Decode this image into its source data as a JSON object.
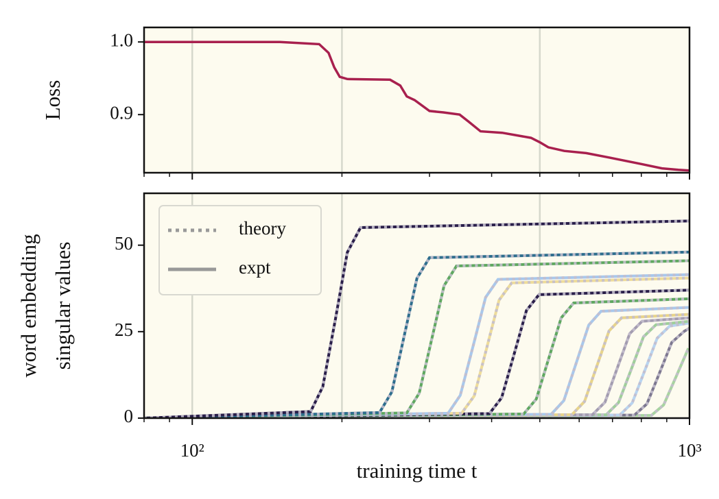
{
  "chart_data": [
    {
      "type": "line",
      "ylabel": "Loss",
      "xscale": "log",
      "xlim": [
        80,
        1000
      ],
      "ylim": [
        0.82,
        1.02
      ],
      "yticks": [
        0.9,
        {
          "value": 1.0,
          "label": "1.0"
        }
      ],
      "xticks": [
        100,
        1000
      ],
      "xminor": [
        80,
        90,
        200,
        300,
        400,
        500,
        600,
        700,
        800,
        900
      ],
      "vlines": [
        100,
        200,
        500
      ],
      "color": "#a8204e",
      "x": [
        80,
        150,
        180,
        188,
        193,
        198,
        205,
        250,
        262,
        270,
        280,
        300,
        320,
        345,
        360,
        380,
        420,
        480,
        500,
        520,
        560,
        620,
        700,
        800,
        880,
        950,
        1000
      ],
      "values": [
        1.0,
        1.0,
        0.997,
        0.985,
        0.965,
        0.952,
        0.949,
        0.948,
        0.94,
        0.925,
        0.92,
        0.905,
        0.903,
        0.9,
        0.89,
        0.877,
        0.875,
        0.868,
        0.862,
        0.855,
        0.85,
        0.847,
        0.84,
        0.832,
        0.826,
        0.824,
        0.823
      ]
    },
    {
      "type": "line",
      "ylabel": [
        "word embedding",
        "singular values"
      ],
      "xlabel": "training time t",
      "xscale": "log",
      "xlim": [
        80,
        1000
      ],
      "ylim": [
        0,
        65
      ],
      "yticks": [
        0,
        25,
        50
      ],
      "xticks": [
        {
          "value": 100,
          "label": "10²"
        },
        {
          "value": 1000,
          "label": "10³"
        }
      ],
      "xminor": [
        80,
        90,
        200,
        300,
        400,
        500,
        600,
        700,
        800,
        900
      ],
      "vlines": [
        100,
        200,
        500
      ],
      "legend": {
        "loc": "upper left",
        "entries": [
          {
            "name": "theory",
            "style": "dotted"
          },
          {
            "name": "expt",
            "style": "solid"
          }
        ]
      },
      "series": [
        {
          "color": "#2a1f4a",
          "x": [
            80,
            173,
            183,
            194,
            205,
            218,
            1000
          ],
          "values": [
            0,
            1.9,
            9.1,
            28.5,
            47.9,
            55.1,
            57
          ]
        },
        {
          "color": "#2e6e8e",
          "x": [
            80,
            238,
            252,
            267,
            283,
            300,
            1000
          ],
          "values": [
            0,
            1.6,
            7.6,
            24,
            40.4,
            46.4,
            48
          ]
        },
        {
          "color": "#5fa860",
          "x": [
            80,
            270,
            286,
            303,
            321,
            340,
            1000
          ],
          "values": [
            0,
            1.5,
            7.2,
            22.75,
            38.3,
            44,
            45.5
          ]
        },
        {
          "color": "#a8c8ec",
          "x": [
            80,
            327,
            346,
            367,
            389,
            412,
            1000
          ],
          "values": [
            0,
            1.4,
            6.6,
            20.75,
            34.9,
            40.1,
            41.5
          ]
        },
        {
          "color": "#eedc9a",
          "x": [
            80,
            348,
            369,
            391,
            414,
            439,
            1000
          ],
          "values": [
            0,
            1.4,
            6.4,
            20.25,
            34.1,
            39.1,
            40.5
          ]
        },
        {
          "color": "#2a1f4a",
          "x": [
            80,
            396,
            419,
            444,
            470,
            498,
            1000
          ],
          "values": [
            0,
            1.3,
            5.9,
            18.5,
            31.1,
            35.7,
            37
          ]
        },
        {
          "color": "#5fa860",
          "x": [
            80,
            464,
            492,
            521,
            552,
            585,
            1000
          ],
          "values": [
            0,
            1.2,
            5.5,
            17.25,
            29,
            33.3,
            34.5
          ]
        },
        {
          "color": "#a8c8ec",
          "x": [
            80,
            527,
            559,
            592,
            627,
            664,
            1000
          ],
          "values": [
            0,
            1.1,
            5.1,
            16,
            26.9,
            30.9,
            32
          ]
        },
        {
          "color": "#e8d48a",
          "x": [
            80,
            580,
            615,
            651,
            689,
            730,
            1000
          ],
          "values": [
            0,
            1,
            4.8,
            15,
            25.2,
            29,
            30
          ]
        },
        {
          "color": "#a39cb0",
          "x": [
            80,
            638,
            676,
            716,
            758,
            803,
            1000
          ],
          "values": [
            0,
            1,
            4.6,
            14.5,
            24.4,
            28,
            29
          ]
        },
        {
          "color": "#9fcf9a",
          "x": [
            80,
            680,
            720,
            763,
            808,
            856,
            1000
          ],
          "values": [
            0,
            1,
            4.5,
            14,
            23.5,
            27,
            28
          ]
        },
        {
          "color": "#b8d4f0",
          "x": [
            80,
            724,
            767,
            813,
            861,
            912,
            1000
          ],
          "values": [
            0,
            0.9,
            4.4,
            13.75,
            23.1,
            26.6,
            27.5
          ]
        },
        {
          "color": "#7d7890",
          "x": [
            80,
            775,
            821,
            870,
            921,
            976,
            1000
          ],
          "values": [
            0,
            0.9,
            4.1,
            13,
            21.9,
            25.1,
            26
          ]
        },
        {
          "color": "#a8d4a0",
          "x": [
            80,
            838,
            887,
            940,
            995
          ],
          "values": [
            0,
            0.8,
            3.8,
            12,
            20.2
          ]
        }
      ]
    }
  ]
}
